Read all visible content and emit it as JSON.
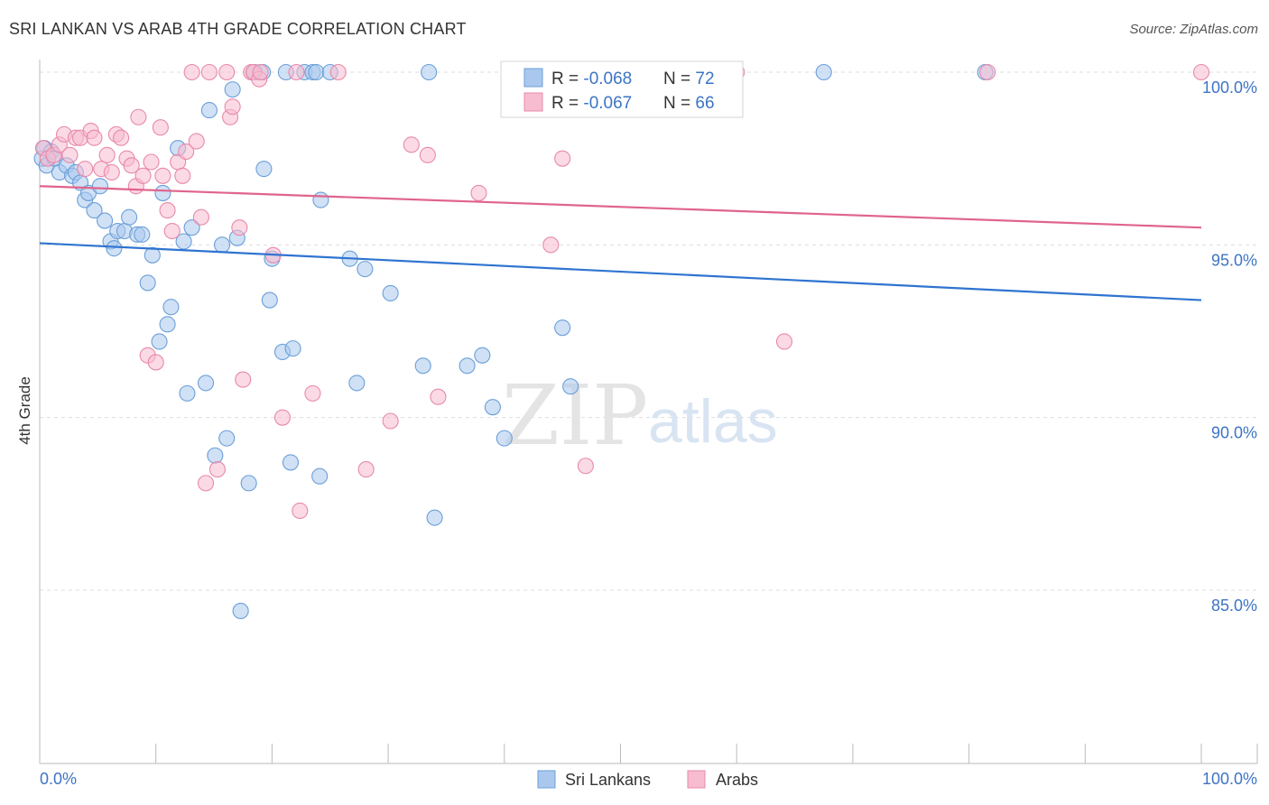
{
  "title": "SRI LANKAN VS ARAB 4TH GRADE CORRELATION CHART",
  "source": "Source: ZipAtlas.com",
  "watermark": {
    "zip": "ZIP",
    "atlas": "atlas"
  },
  "colors": {
    "blue_fill": "#aac8ee",
    "blue_stroke": "#6b9fd8",
    "blue_line": "#2f74d0",
    "pink_fill": "#f7bcd0",
    "pink_stroke": "#e889aa",
    "pink_line": "#e0648c",
    "axis_text": "#3d74c4",
    "grid": "#dddddd"
  },
  "legend": {
    "rows": [
      {
        "r_label": "R = ",
        "r_value": "-0.068",
        "n_label": "N = ",
        "n_value": "72"
      },
      {
        "r_label": "R = ",
        "r_value": "-0.067",
        "n_label": "N = ",
        "n_value": "66"
      }
    ]
  },
  "bottom_legend": [
    "Sri Lankans",
    "Arabs"
  ],
  "chart_data": {
    "type": "scatter",
    "title": "SRI LANKAN VS ARAB 4TH GRADE CORRELATION CHART",
    "xlabel": "",
    "ylabel": "4th Grade",
    "xlim": [
      0,
      100
    ],
    "ylim": [
      80.5,
      100.8
    ],
    "x_tick_labels": [
      "0.0%",
      "100.0%"
    ],
    "y_ticks": [
      85,
      90,
      95,
      100
    ],
    "y_tick_labels": [
      "85.0%",
      "90.0%",
      "95.0%",
      "100.0%"
    ],
    "grid": true,
    "series": [
      {
        "name": "Sri Lankans",
        "color": "#aac8ee",
        "r": -0.068,
        "n": 72,
        "trend": [
          [
            0,
            95.05
          ],
          [
            100,
            93.4
          ]
        ],
        "points": [
          [
            0.2,
            97.5
          ],
          [
            0.4,
            97.8
          ],
          [
            0.6,
            97.3
          ],
          [
            1.0,
            97.7
          ],
          [
            1.3,
            97.5
          ],
          [
            1.7,
            97.1
          ],
          [
            2.3,
            97.3
          ],
          [
            2.8,
            97.0
          ],
          [
            3.1,
            97.1
          ],
          [
            3.5,
            96.8
          ],
          [
            3.9,
            96.3
          ],
          [
            4.2,
            96.5
          ],
          [
            4.7,
            96.0
          ],
          [
            5.2,
            96.7
          ],
          [
            5.6,
            95.7
          ],
          [
            6.1,
            95.1
          ],
          [
            6.4,
            94.9
          ],
          [
            6.7,
            95.4
          ],
          [
            7.3,
            95.4
          ],
          [
            7.7,
            95.8
          ],
          [
            8.4,
            95.3
          ],
          [
            8.8,
            95.3
          ],
          [
            9.3,
            93.9
          ],
          [
            9.7,
            94.7
          ],
          [
            10.3,
            92.2
          ],
          [
            10.6,
            96.5
          ],
          [
            11.0,
            92.7
          ],
          [
            11.3,
            93.2
          ],
          [
            11.9,
            97.8
          ],
          [
            12.4,
            95.1
          ],
          [
            12.7,
            90.7
          ],
          [
            13.1,
            95.5
          ],
          [
            14.3,
            91.0
          ],
          [
            14.6,
            98.9
          ],
          [
            15.1,
            88.9
          ],
          [
            15.7,
            95.0
          ],
          [
            16.1,
            89.4
          ],
          [
            16.6,
            99.5
          ],
          [
            17.0,
            95.2
          ],
          [
            17.3,
            84.4
          ],
          [
            18.0,
            88.1
          ],
          [
            18.5,
            100
          ],
          [
            19.2,
            100
          ],
          [
            19.3,
            97.2
          ],
          [
            19.8,
            93.4
          ],
          [
            20.0,
            94.6
          ],
          [
            20.9,
            91.9
          ],
          [
            21.2,
            100
          ],
          [
            21.6,
            88.7
          ],
          [
            21.8,
            92.0
          ],
          [
            22.8,
            100
          ],
          [
            23.5,
            100
          ],
          [
            23.8,
            100
          ],
          [
            24.1,
            88.3
          ],
          [
            24.2,
            96.3
          ],
          [
            25.0,
            100
          ],
          [
            26.7,
            94.6
          ],
          [
            27.3,
            91.0
          ],
          [
            28.0,
            94.3
          ],
          [
            30.2,
            93.6
          ],
          [
            33.0,
            91.5
          ],
          [
            33.5,
            100
          ],
          [
            34.0,
            87.1
          ],
          [
            36.8,
            91.5
          ],
          [
            38.1,
            91.8
          ],
          [
            39.0,
            90.3
          ],
          [
            40.0,
            89.4
          ],
          [
            41.0,
            100
          ],
          [
            45.0,
            92.6
          ],
          [
            45.7,
            90.9
          ],
          [
            67.5,
            100
          ],
          [
            81.4,
            100
          ]
        ]
      },
      {
        "name": "Arabs",
        "color": "#f7bcd0",
        "r": -0.067,
        "n": 66,
        "trend": [
          [
            0,
            96.7
          ],
          [
            100,
            95.5
          ]
        ],
        "points": [
          [
            0.3,
            97.8
          ],
          [
            0.7,
            97.5
          ],
          [
            1.2,
            97.6
          ],
          [
            1.7,
            97.9
          ],
          [
            2.1,
            98.2
          ],
          [
            2.6,
            97.6
          ],
          [
            3.1,
            98.1
          ],
          [
            3.5,
            98.1
          ],
          [
            3.9,
            97.2
          ],
          [
            4.4,
            98.3
          ],
          [
            4.7,
            98.1
          ],
          [
            5.3,
            97.2
          ],
          [
            5.8,
            97.6
          ],
          [
            6.2,
            97.1
          ],
          [
            6.6,
            98.2
          ],
          [
            7.0,
            98.1
          ],
          [
            7.5,
            97.5
          ],
          [
            7.9,
            97.3
          ],
          [
            8.3,
            96.7
          ],
          [
            8.5,
            98.7
          ],
          [
            8.9,
            97.0
          ],
          [
            9.3,
            91.8
          ],
          [
            9.6,
            97.4
          ],
          [
            10.0,
            91.6
          ],
          [
            10.4,
            98.4
          ],
          [
            10.6,
            97.0
          ],
          [
            11.0,
            96.0
          ],
          [
            11.4,
            95.4
          ],
          [
            11.9,
            97.4
          ],
          [
            12.3,
            97.0
          ],
          [
            12.6,
            97.7
          ],
          [
            13.1,
            100
          ],
          [
            13.5,
            98.0
          ],
          [
            13.9,
            95.8
          ],
          [
            14.3,
            88.1
          ],
          [
            14.6,
            100
          ],
          [
            15.3,
            88.5
          ],
          [
            16.1,
            100
          ],
          [
            16.4,
            98.7
          ],
          [
            16.6,
            99.0
          ],
          [
            17.2,
            95.5
          ],
          [
            17.5,
            91.1
          ],
          [
            18.2,
            100
          ],
          [
            18.4,
            100
          ],
          [
            18.9,
            99.8
          ],
          [
            19.0,
            100
          ],
          [
            20.1,
            94.7
          ],
          [
            20.9,
            90.0
          ],
          [
            22.1,
            100
          ],
          [
            22.4,
            87.3
          ],
          [
            23.5,
            90.7
          ],
          [
            25.7,
            100
          ],
          [
            28.1,
            88.5
          ],
          [
            30.2,
            89.9
          ],
          [
            32.0,
            97.9
          ],
          [
            33.4,
            97.6
          ],
          [
            34.3,
            90.6
          ],
          [
            37.8,
            96.5
          ],
          [
            44.0,
            95.0
          ],
          [
            45.0,
            97.5
          ],
          [
            47.0,
            88.6
          ],
          [
            47.4,
            100
          ],
          [
            60.0,
            100
          ],
          [
            64.1,
            92.2
          ],
          [
            81.6,
            100
          ],
          [
            100,
            100
          ]
        ]
      }
    ]
  }
}
